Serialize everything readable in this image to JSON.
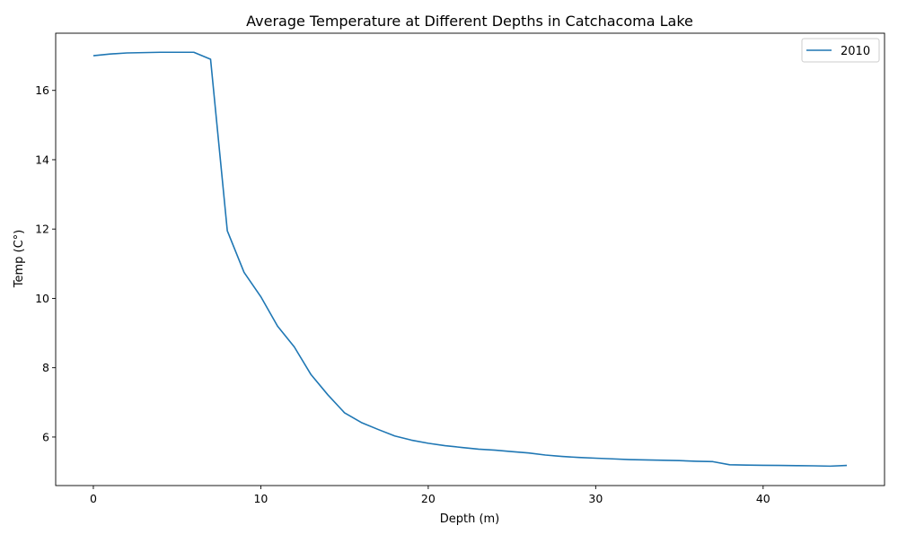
{
  "chart_data": {
    "type": "line",
    "title": "Average Temperature at Different Depths in Catchacoma Lake",
    "xlabel": "Depth (m)",
    "ylabel": "Temp (C°)",
    "xlim": [
      -2.25,
      47.25
    ],
    "ylim": [
      4.6,
      17.65
    ],
    "xticks": [
      0,
      10,
      20,
      30,
      40
    ],
    "yticks": [
      6,
      8,
      10,
      12,
      14,
      16
    ],
    "grid": false,
    "legend_position": "top-right",
    "series": [
      {
        "name": "2010",
        "color": "#1f77b4",
        "x": [
          0,
          1,
          2,
          3,
          4,
          5,
          6,
          7,
          8,
          9,
          10,
          11,
          12,
          13,
          14,
          15,
          16,
          17,
          18,
          19,
          20,
          21,
          22,
          23,
          24,
          25,
          26,
          27,
          28,
          29,
          30,
          31,
          32,
          33,
          34,
          35,
          36,
          37,
          38,
          39,
          40,
          41,
          42,
          43,
          44,
          45
        ],
        "y": [
          17.0,
          17.05,
          17.08,
          17.09,
          17.1,
          17.1,
          17.1,
          16.9,
          11.95,
          10.75,
          10.05,
          9.2,
          8.6,
          7.8,
          7.22,
          6.7,
          6.42,
          6.22,
          6.03,
          5.91,
          5.82,
          5.75,
          5.7,
          5.65,
          5.62,
          5.58,
          5.54,
          5.48,
          5.44,
          5.41,
          5.39,
          5.37,
          5.35,
          5.34,
          5.33,
          5.32,
          5.3,
          5.29,
          5.2,
          5.19,
          5.185,
          5.18,
          5.175,
          5.17,
          5.16,
          5.18
        ]
      }
    ]
  }
}
